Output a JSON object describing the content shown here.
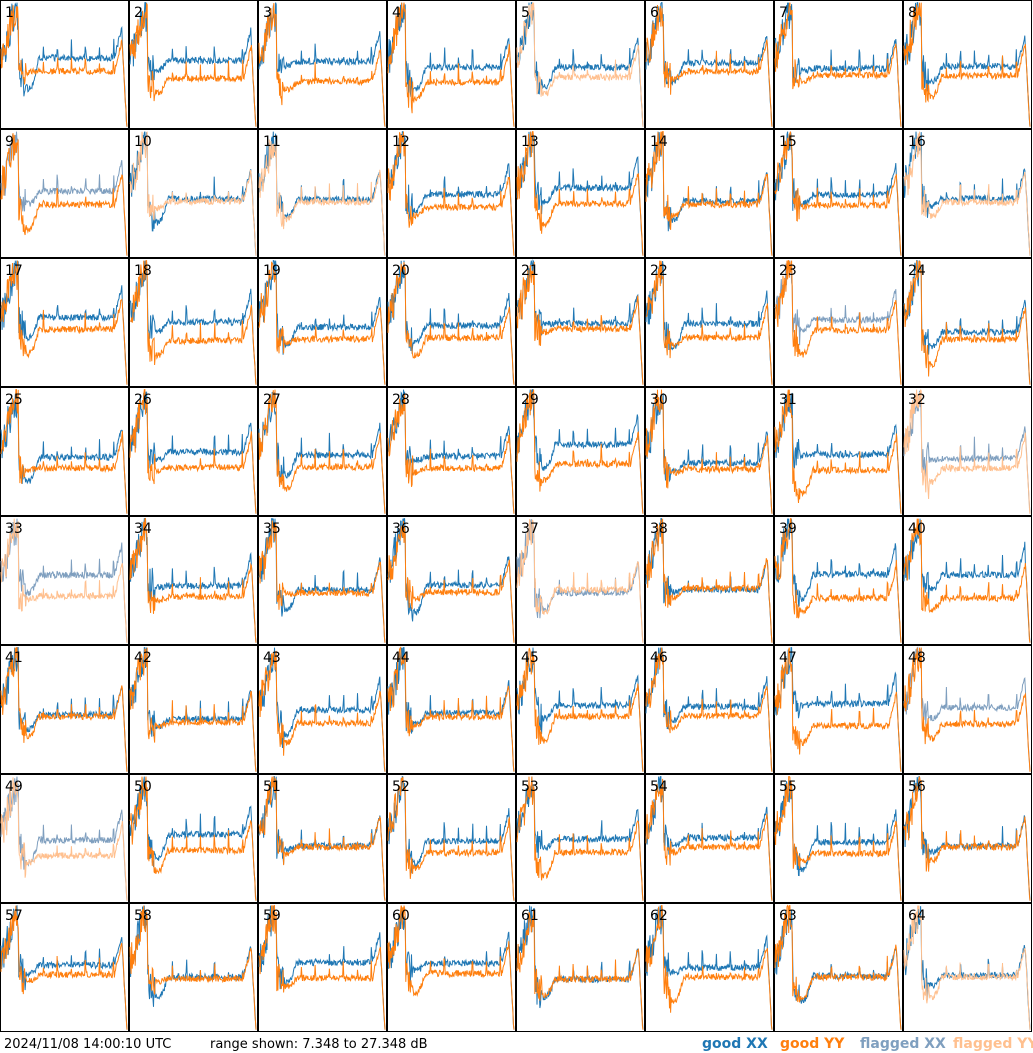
{
  "panels": [
    {
      "label": 1,
      "xx_color": "#1f77b4",
      "yy_color": "#ff7f0e"
    },
    {
      "label": 2,
      "xx_color": "#1f77b4",
      "yy_color": "#ff7f0e"
    },
    {
      "label": 3,
      "xx_color": "#1f77b4",
      "yy_color": "#ff7f0e"
    },
    {
      "label": 4,
      "xx_color": "#1f77b4",
      "yy_color": "#ff7f0e"
    },
    {
      "label": 5,
      "xx_color": "#1f77b4",
      "yy_color": "#ffc08f"
    },
    {
      "label": 6,
      "xx_color": "#1f77b4",
      "yy_color": "#ff7f0e"
    },
    {
      "label": 7,
      "xx_color": "#1f77b4",
      "yy_color": "#ff7f0e"
    },
    {
      "label": 8,
      "xx_color": "#1f77b4",
      "yy_color": "#ff7f0e"
    },
    {
      "label": 9,
      "xx_color": "#7f9fbf",
      "yy_color": "#ff7f0e"
    },
    {
      "label": 10,
      "xx_color": "#1f77b4",
      "yy_color": "#ffc08f"
    },
    {
      "label": 11,
      "xx_color": "#1f77b4",
      "yy_color": "#ffc08f"
    },
    {
      "label": 12,
      "xx_color": "#1f77b4",
      "yy_color": "#ff7f0e"
    },
    {
      "label": 13,
      "xx_color": "#1f77b4",
      "yy_color": "#ff7f0e"
    },
    {
      "label": 14,
      "xx_color": "#1f77b4",
      "yy_color": "#ff7f0e"
    },
    {
      "label": 15,
      "xx_color": "#1f77b4",
      "yy_color": "#ff7f0e"
    },
    {
      "label": 16,
      "xx_color": "#1f77b4",
      "yy_color": "#ffc08f"
    },
    {
      "label": 17,
      "xx_color": "#1f77b4",
      "yy_color": "#ff7f0e"
    },
    {
      "label": 18,
      "xx_color": "#1f77b4",
      "yy_color": "#ff7f0e"
    },
    {
      "label": 19,
      "xx_color": "#1f77b4",
      "yy_color": "#ff7f0e"
    },
    {
      "label": 20,
      "xx_color": "#1f77b4",
      "yy_color": "#ff7f0e"
    },
    {
      "label": 21,
      "xx_color": "#1f77b4",
      "yy_color": "#ff7f0e"
    },
    {
      "label": 22,
      "xx_color": "#1f77b4",
      "yy_color": "#ff7f0e"
    },
    {
      "label": 23,
      "xx_color": "#7f9fbf",
      "yy_color": "#ff7f0e"
    },
    {
      "label": 24,
      "xx_color": "#1f77b4",
      "yy_color": "#ff7f0e"
    },
    {
      "label": 25,
      "xx_color": "#1f77b4",
      "yy_color": "#ff7f0e"
    },
    {
      "label": 26,
      "xx_color": "#1f77b4",
      "yy_color": "#ff7f0e"
    },
    {
      "label": 27,
      "xx_color": "#1f77b4",
      "yy_color": "#ff7f0e"
    },
    {
      "label": 28,
      "xx_color": "#1f77b4",
      "yy_color": "#ff7f0e"
    },
    {
      "label": 29,
      "xx_color": "#1f77b4",
      "yy_color": "#ff7f0e"
    },
    {
      "label": 30,
      "xx_color": "#1f77b4",
      "yy_color": "#ff7f0e"
    },
    {
      "label": 31,
      "xx_color": "#1f77b4",
      "yy_color": "#ff7f0e"
    },
    {
      "label": 32,
      "xx_color": "#7f9fbf",
      "yy_color": "#ffc08f"
    },
    {
      "label": 33,
      "xx_color": "#7f9fbf",
      "yy_color": "#ffc08f"
    },
    {
      "label": 34,
      "xx_color": "#1f77b4",
      "yy_color": "#ff7f0e"
    },
    {
      "label": 35,
      "xx_color": "#1f77b4",
      "yy_color": "#ff7f0e"
    },
    {
      "label": 36,
      "xx_color": "#1f77b4",
      "yy_color": "#ff7f0e"
    },
    {
      "label": 37,
      "xx_color": "#7f9fbf",
      "yy_color": "#ffc08f"
    },
    {
      "label": 38,
      "xx_color": "#1f77b4",
      "yy_color": "#ff7f0e"
    },
    {
      "label": 39,
      "xx_color": "#1f77b4",
      "yy_color": "#ff7f0e"
    },
    {
      "label": 40,
      "xx_color": "#1f77b4",
      "yy_color": "#ff7f0e"
    },
    {
      "label": 41,
      "xx_color": "#1f77b4",
      "yy_color": "#ff7f0e"
    },
    {
      "label": 42,
      "xx_color": "#1f77b4",
      "yy_color": "#ff7f0e"
    },
    {
      "label": 43,
      "xx_color": "#1f77b4",
      "yy_color": "#ff7f0e"
    },
    {
      "label": 44,
      "xx_color": "#1f77b4",
      "yy_color": "#ff7f0e"
    },
    {
      "label": 45,
      "xx_color": "#1f77b4",
      "yy_color": "#ff7f0e"
    },
    {
      "label": 46,
      "xx_color": "#1f77b4",
      "yy_color": "#ff7f0e"
    },
    {
      "label": 47,
      "xx_color": "#1f77b4",
      "yy_color": "#ff7f0e"
    },
    {
      "label": 48,
      "xx_color": "#7f9fbf",
      "yy_color": "#ff7f0e"
    },
    {
      "label": 49,
      "xx_color": "#7f9fbf",
      "yy_color": "#ffc08f"
    },
    {
      "label": 50,
      "xx_color": "#1f77b4",
      "yy_color": "#ff7f0e"
    },
    {
      "label": 51,
      "xx_color": "#1f77b4",
      "yy_color": "#ff7f0e"
    },
    {
      "label": 52,
      "xx_color": "#1f77b4",
      "yy_color": "#ff7f0e"
    },
    {
      "label": 53,
      "xx_color": "#1f77b4",
      "yy_color": "#ff7f0e"
    },
    {
      "label": 54,
      "xx_color": "#1f77b4",
      "yy_color": "#ff7f0e"
    },
    {
      "label": 55,
      "xx_color": "#1f77b4",
      "yy_color": "#ff7f0e"
    },
    {
      "label": 56,
      "xx_color": "#1f77b4",
      "yy_color": "#ff7f0e"
    },
    {
      "label": 57,
      "xx_color": "#1f77b4",
      "yy_color": "#ff7f0e"
    },
    {
      "label": 58,
      "xx_color": "#1f77b4",
      "yy_color": "#ff7f0e"
    },
    {
      "label": 59,
      "xx_color": "#1f77b4",
      "yy_color": "#ff7f0e"
    },
    {
      "label": 60,
      "xx_color": "#1f77b4",
      "yy_color": "#ff7f0e"
    },
    {
      "label": 61,
      "xx_color": "#1f77b4",
      "yy_color": "#ff7f0e"
    },
    {
      "label": 62,
      "xx_color": "#1f77b4",
      "yy_color": "#ff7f0e"
    },
    {
      "label": 63,
      "xx_color": "#1f77b4",
      "yy_color": "#ff7f0e"
    },
    {
      "label": 64,
      "xx_color": "#1f77b4",
      "yy_color": "#ffc08f"
    }
  ],
  "footer": {
    "timestamp": "2024/11/08 14:00:10 UTC",
    "range": "range shown: 7.348 to 27.348 dB"
  },
  "legend": [
    {
      "label": "good XX",
      "color": "#1f77b4"
    },
    {
      "label": "good YY",
      "color": "#ff7f0e"
    },
    {
      "label": "flagged XX",
      "color": "#7f9fbf"
    },
    {
      "label": "flagged YY",
      "color": "#ffc08f"
    }
  ]
}
